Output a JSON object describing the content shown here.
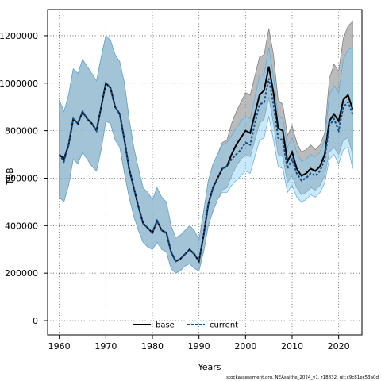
{
  "chart_data": {
    "type": "line",
    "title": "",
    "xlabel": "Years",
    "ylabel": "TSB",
    "xlim": [
      1957.5,
      2025
    ],
    "ylim": [
      -60000,
      1310000
    ],
    "x_ticks": [
      1960,
      1970,
      1980,
      1990,
      2000,
      2010,
      2020
    ],
    "y_ticks": [
      0,
      200000,
      400000,
      600000,
      800000,
      1000000,
      1200000
    ],
    "x_tick_labels": [
      "1960",
      "1970",
      "1980",
      "1990",
      "2000",
      "2010",
      "2020"
    ],
    "y_tick_labels": [
      "0",
      "200000",
      "400000",
      "600000",
      "800000",
      "1000000",
      "1200000"
    ],
    "grid": true,
    "legend_position": "bottom-center",
    "footer": "stockassessment.org, NEAsaithe_2024_v1, r18832, git:c9c81ec53a0d",
    "colors": {
      "base": "#000000",
      "current": "#104E8B",
      "base_band": "#9e9e9e",
      "current_band": "#87CEFA"
    },
    "x": [
      1960,
      1961,
      1962,
      1963,
      1964,
      1965,
      1966,
      1967,
      1968,
      1969,
      1970,
      1971,
      1972,
      1973,
      1974,
      1975,
      1976,
      1977,
      1978,
      1979,
      1980,
      1981,
      1982,
      1983,
      1984,
      1985,
      1986,
      1987,
      1988,
      1989,
      1990,
      1991,
      1992,
      1993,
      1994,
      1995,
      1996,
      1997,
      1998,
      1999,
      2000,
      2001,
      2002,
      2003,
      2004,
      2005,
      2006,
      2007,
      2008,
      2009,
      2010,
      2011,
      2012,
      2013,
      2014,
      2015,
      2016,
      2017,
      2018,
      2019,
      2020,
      2021,
      2022,
      2023
    ],
    "series": [
      {
        "name": "base",
        "values": [
          700000,
          680000,
          740000,
          850000,
          830000,
          880000,
          850000,
          830000,
          800000,
          900000,
          1000000,
          980000,
          900000,
          870000,
          760000,
          640000,
          560000,
          480000,
          410000,
          390000,
          370000,
          420000,
          380000,
          370000,
          290000,
          250000,
          260000,
          280000,
          300000,
          280000,
          250000,
          360000,
          490000,
          560000,
          600000,
          640000,
          650000,
          700000,
          740000,
          770000,
          800000,
          790000,
          870000,
          950000,
          970000,
          1070000,
          960000,
          810000,
          800000,
          670000,
          710000,
          640000,
          610000,
          620000,
          640000,
          630000,
          650000,
          700000,
          840000,
          870000,
          840000,
          930000,
          950000,
          890000
        ],
        "upper": [
          930000,
          880000,
          950000,
          1060000,
          1040000,
          1100000,
          1070000,
          1040000,
          1010000,
          1110000,
          1200000,
          1180000,
          1120000,
          1090000,
          1000000,
          850000,
          730000,
          640000,
          560000,
          540000,
          510000,
          560000,
          520000,
          500000,
          400000,
          350000,
          360000,
          380000,
          400000,
          380000,
          340000,
          460000,
          590000,
          660000,
          700000,
          750000,
          760000,
          830000,
          880000,
          920000,
          960000,
          950000,
          1030000,
          1110000,
          1120000,
          1230000,
          1120000,
          930000,
          910000,
          780000,
          820000,
          750000,
          710000,
          720000,
          740000,
          720000,
          740000,
          790000,
          1020000,
          1080000,
          1050000,
          1190000,
          1240000,
          1260000
        ],
        "lower": [
          520000,
          500000,
          570000,
          680000,
          660000,
          710000,
          680000,
          650000,
          630000,
          720000,
          840000,
          830000,
          760000,
          730000,
          620000,
          520000,
          440000,
          380000,
          330000,
          310000,
          300000,
          330000,
          300000,
          290000,
          220000,
          200000,
          210000,
          230000,
          240000,
          220000,
          210000,
          290000,
          400000,
          460000,
          510000,
          550000,
          560000,
          610000,
          650000,
          680000,
          700000,
          690000,
          760000,
          830000,
          850000,
          940000,
          830000,
          700000,
          690000,
          580000,
          610000,
          560000,
          530000,
          540000,
          560000,
          550000,
          570000,
          610000,
          710000,
          730000,
          700000,
          760000,
          770000,
          700000
        ]
      },
      {
        "name": "current",
        "values": [
          700000,
          670000,
          740000,
          850000,
          830000,
          880000,
          850000,
          830000,
          800000,
          900000,
          1000000,
          980000,
          900000,
          870000,
          760000,
          640000,
          560000,
          480000,
          410000,
          390000,
          370000,
          420000,
          380000,
          370000,
          290000,
          250000,
          260000,
          280000,
          300000,
          280000,
          250000,
          360000,
          490000,
          560000,
          600000,
          640000,
          650000,
          680000,
          700000,
          720000,
          750000,
          740000,
          830000,
          910000,
          920000,
          1020000,
          910000,
          770000,
          760000,
          640000,
          680000,
          620000,
          590000,
          600000,
          620000,
          610000,
          630000,
          680000,
          820000,
          850000,
          800000,
          900000,
          920000,
          870000
        ],
        "upper": [
          930000,
          880000,
          950000,
          1060000,
          1040000,
          1100000,
          1070000,
          1040000,
          1010000,
          1110000,
          1200000,
          1180000,
          1120000,
          1090000,
          1000000,
          850000,
          730000,
          640000,
          560000,
          540000,
          510000,
          560000,
          520000,
          500000,
          400000,
          350000,
          360000,
          380000,
          400000,
          380000,
          340000,
          460000,
          590000,
          660000,
          700000,
          740000,
          750000,
          780000,
          810000,
          840000,
          860000,
          850000,
          940000,
          1030000,
          1040000,
          1150000,
          1030000,
          860000,
          850000,
          730000,
          770000,
          710000,
          670000,
          680000,
          700000,
          690000,
          710000,
          760000,
          950000,
          990000,
          960000,
          1100000,
          1140000,
          1150000
        ],
        "lower": [
          520000,
          500000,
          570000,
          680000,
          660000,
          710000,
          680000,
          650000,
          630000,
          720000,
          840000,
          830000,
          760000,
          730000,
          620000,
          520000,
          440000,
          380000,
          330000,
          310000,
          300000,
          330000,
          300000,
          290000,
          220000,
          200000,
          210000,
          230000,
          240000,
          220000,
          210000,
          290000,
          400000,
          460000,
          510000,
          540000,
          540000,
          570000,
          590000,
          610000,
          630000,
          620000,
          690000,
          760000,
          770000,
          860000,
          760000,
          650000,
          640000,
          540000,
          570000,
          520000,
          500000,
          510000,
          530000,
          520000,
          540000,
          580000,
          680000,
          700000,
          660000,
          720000,
          730000,
          640000
        ]
      }
    ]
  }
}
